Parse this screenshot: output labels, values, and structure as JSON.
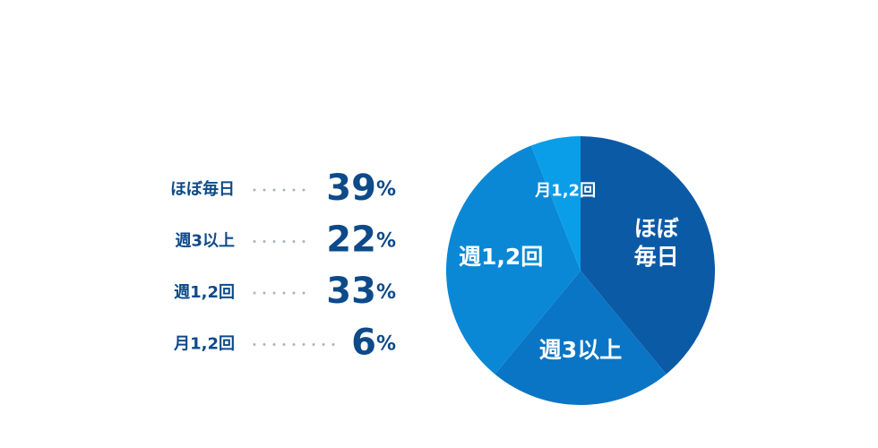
{
  "chart_data": {
    "type": "pie",
    "categories": [
      "ほぼ毎日",
      "週3以上",
      "週1,2回",
      "月1,2回"
    ],
    "values": [
      39,
      22,
      33,
      6
    ],
    "value_labels": [
      "39%",
      "22%",
      "33%",
      "6%"
    ],
    "colors": [
      "#0b5aa6",
      "#0a75c4",
      "#0a88d6",
      "#0a9ee8"
    ]
  }
}
